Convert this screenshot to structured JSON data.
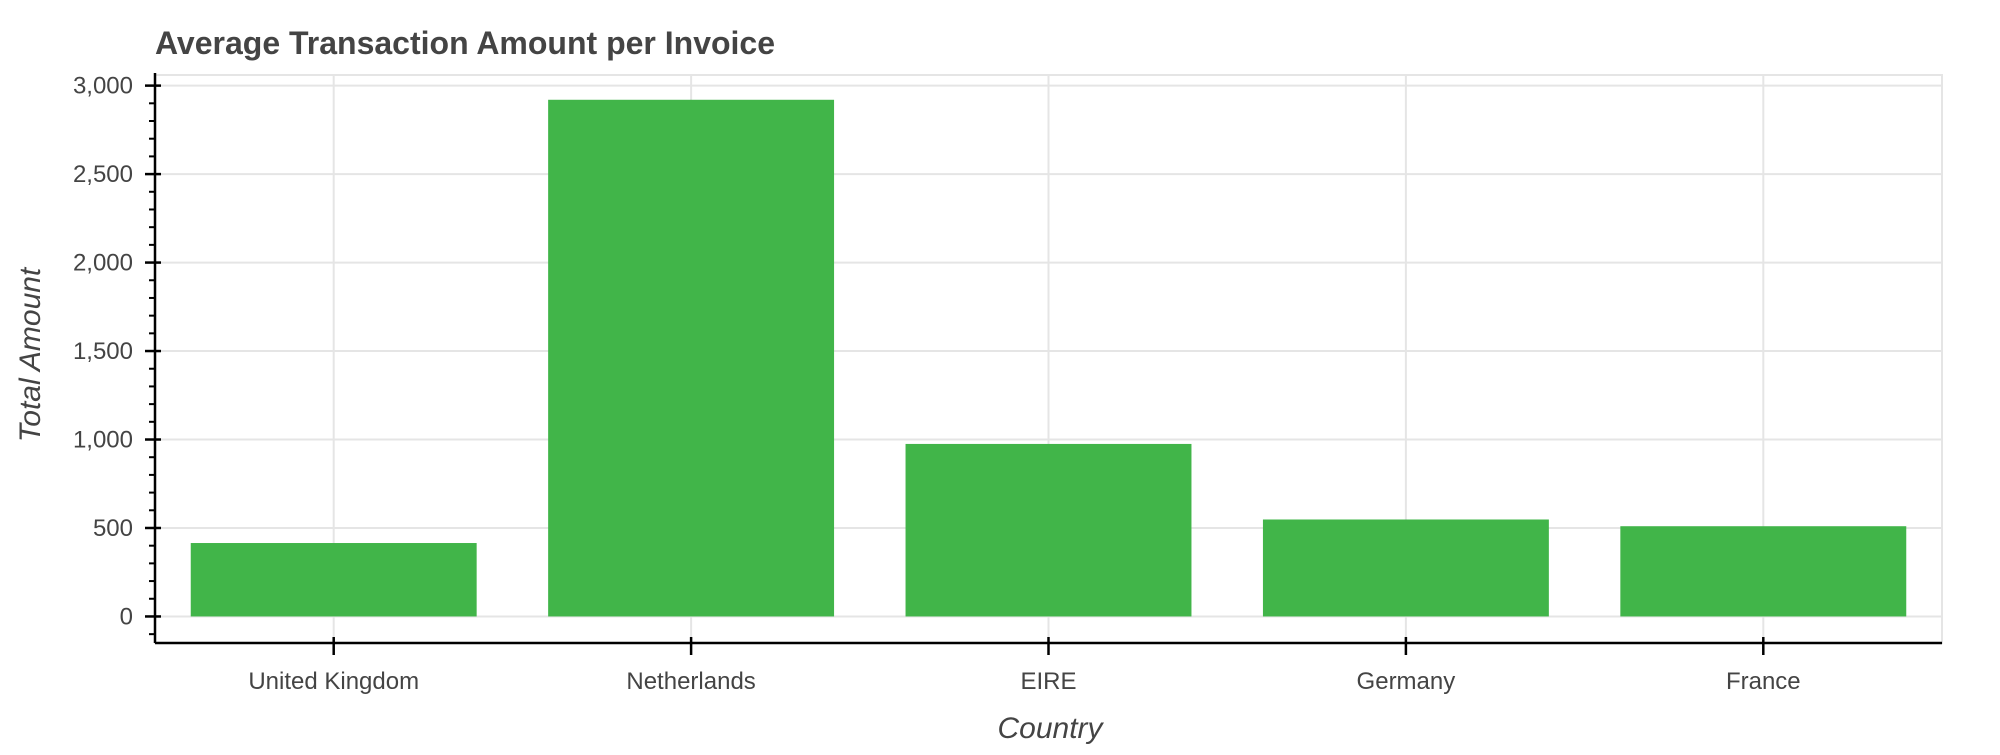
{
  "colors": {
    "bar": "#41b549",
    "grid": "#e5e5e5",
    "axis": "#000000",
    "text": "#444444",
    "background": "#ffffff"
  },
  "chart_data": {
    "type": "bar",
    "title": "Average Transaction Amount per Invoice",
    "xlabel": "Country",
    "ylabel": "Total Amount",
    "categories": [
      "United Kingdom",
      "Netherlands",
      "EIRE",
      "Germany",
      "France"
    ],
    "values": [
      415,
      2920,
      975,
      548,
      510
    ],
    "ylim": [
      -150,
      3060
    ],
    "yticks": [
      0,
      500,
      1000,
      1500,
      2000,
      2500,
      3000
    ],
    "ytick_labels": [
      "0",
      "500",
      "1,000",
      "1,500",
      "2,000",
      "2,500",
      "3,000"
    ],
    "grid": true,
    "legend": "none"
  }
}
